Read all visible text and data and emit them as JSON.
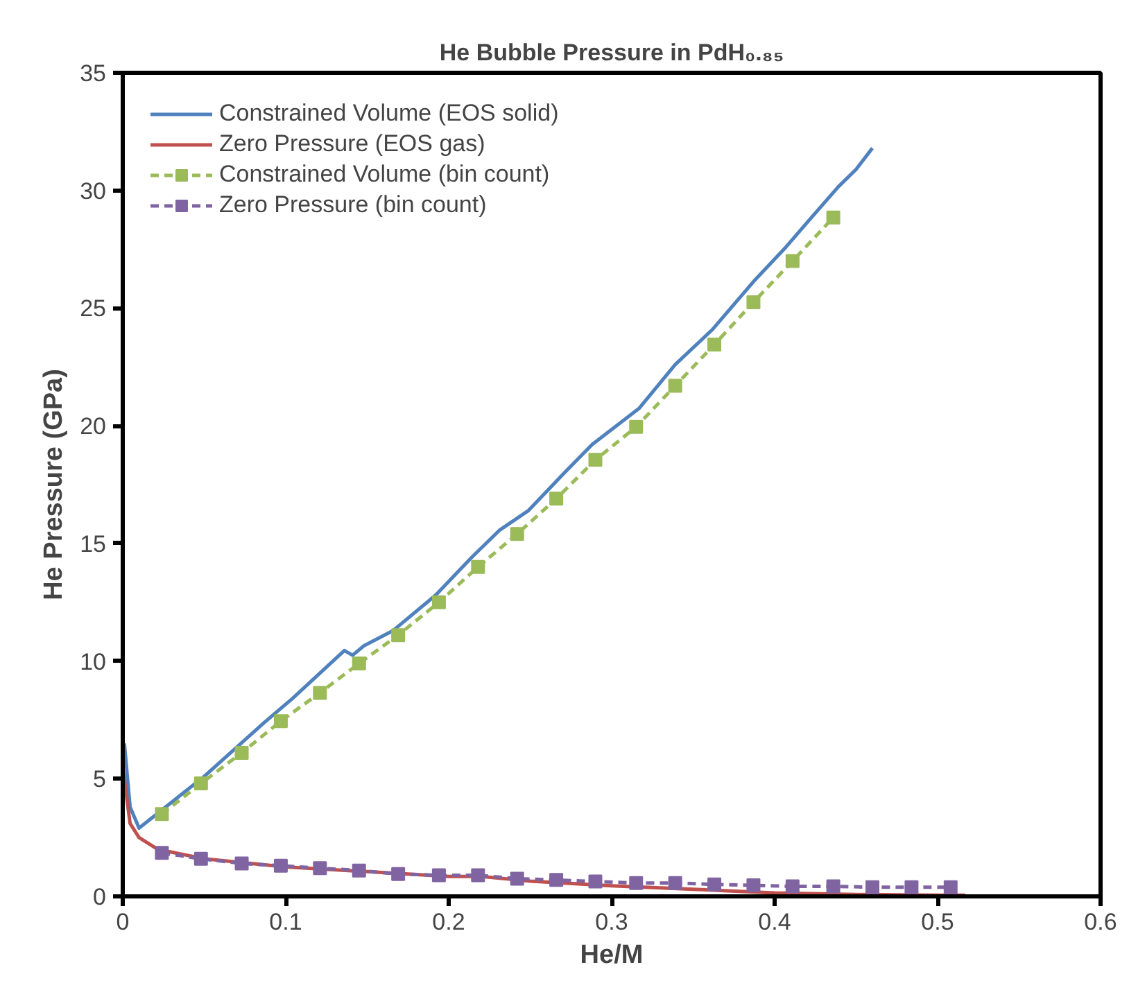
{
  "chart_data": {
    "type": "line",
    "title": "He Bubble Pressure in PdH₀.₈₅",
    "xlabel": "He/M",
    "ylabel": "He Pressure (GPa)",
    "xlim": [
      0,
      0.6
    ],
    "xticks": [
      0,
      0.1,
      0.2,
      0.3,
      0.4,
      0.5,
      0.6
    ],
    "ylim": [
      0,
      35
    ],
    "yticks": [
      0,
      5,
      10,
      15,
      20,
      25,
      30,
      35
    ],
    "grid": false,
    "legend": "top left",
    "series": [
      {
        "name": "Constrained Volume (EOS solid)",
        "color": "#4f81bd",
        "marker": "none",
        "line_style": "solid",
        "x": [
          0.001,
          0.0045,
          0.01,
          0.05,
          0.087,
          0.104,
          0.136,
          0.141,
          0.148,
          0.166,
          0.192,
          0.214,
          0.231,
          0.249,
          0.271,
          0.288,
          0.317,
          0.339,
          0.362,
          0.388,
          0.407,
          0.422,
          0.439,
          0.45,
          0.46
        ],
        "values": [
          6.5,
          3.8,
          2.9,
          5.1,
          7.4,
          8.4,
          10.45,
          10.25,
          10.65,
          11.3,
          12.8,
          14.4,
          15.55,
          16.4,
          18.0,
          19.2,
          20.75,
          22.6,
          24.1,
          26.2,
          27.6,
          28.8,
          30.15,
          30.9,
          31.8
        ]
      },
      {
        "name": "Zero Pressure (EOS gas)",
        "color": "#c0504d",
        "marker": "none",
        "line_style": "solid",
        "x": [
          0,
          0.0045,
          0.01,
          0.0215,
          0.05,
          0.1,
          0.15,
          0.2,
          0.22,
          0.25,
          0.3,
          0.35,
          0.4,
          0.45,
          0.5,
          0.517
        ],
        "values": [
          5.5,
          3.1,
          2.5,
          2.0,
          1.6,
          1.25,
          1.05,
          0.85,
          0.85,
          0.65,
          0.45,
          0.3,
          0.15,
          0.08,
          0.05,
          0.05
        ]
      },
      {
        "name": "Constrained Volume (bin count)",
        "color": "#9bbb59",
        "marker": "square",
        "line_style": "dashed",
        "x": [
          0.024,
          0.048,
          0.073,
          0.097,
          0.121,
          0.145,
          0.169,
          0.194,
          0.218,
          0.242,
          0.266,
          0.29,
          0.315,
          0.339,
          0.363,
          0.387,
          0.411,
          0.436
        ],
        "values": [
          3.5,
          4.8,
          6.1,
          7.45,
          8.65,
          9.9,
          11.1,
          12.5,
          14.0,
          15.4,
          16.9,
          18.55,
          19.95,
          21.7,
          23.45,
          25.25,
          27.0,
          28.85
        ]
      },
      {
        "name": "Zero Pressure (bin count)",
        "color": "#8064a2",
        "marker": "square",
        "line_style": "dashed",
        "x": [
          0.024,
          0.048,
          0.073,
          0.097,
          0.121,
          0.145,
          0.169,
          0.194,
          0.218,
          0.242,
          0.266,
          0.29,
          0.315,
          0.339,
          0.363,
          0.387,
          0.411,
          0.436,
          0.46,
          0.484,
          0.508
        ],
        "values": [
          1.85,
          1.6,
          1.4,
          1.3,
          1.2,
          1.1,
          0.95,
          0.9,
          0.9,
          0.75,
          0.7,
          0.63,
          0.57,
          0.57,
          0.51,
          0.47,
          0.43,
          0.43,
          0.39,
          0.39,
          0.39
        ]
      }
    ]
  }
}
